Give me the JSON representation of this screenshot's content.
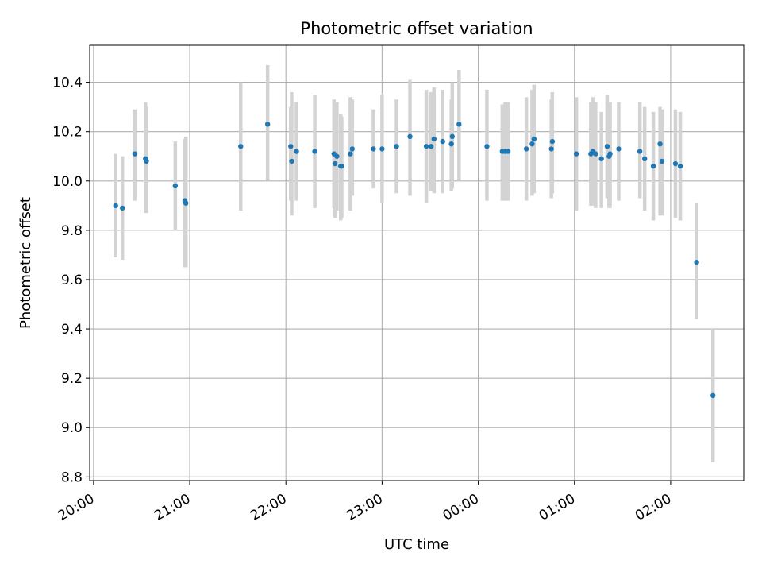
{
  "chart_data": {
    "type": "scatter",
    "title": "Photometric offset variation",
    "xlabel": "UTC time",
    "ylabel": "Photometric offset",
    "x_ticks": [
      "20:00",
      "21:00",
      "22:00",
      "23:00",
      "00:00",
      "01:00",
      "02:00"
    ],
    "y_ticks": [
      "8.8",
      "9.0",
      "9.2",
      "9.4",
      "9.6",
      "9.8",
      "10.0",
      "10.2",
      "10.4"
    ],
    "xlim_hours": [
      19.96,
      26.76
    ],
    "ylim": [
      8.785,
      10.55
    ],
    "grid": true,
    "point_color": "#1f77b4",
    "errorbar_color": "#d3d3d3",
    "series": [
      {
        "x_hours": [
          20.23,
          20.3,
          20.43,
          20.54,
          20.55,
          20.85,
          20.95,
          20.96,
          21.53,
          21.81,
          22.05,
          22.06,
          22.11,
          22.3,
          22.5,
          22.51,
          22.53,
          22.57,
          22.58,
          22.67,
          22.69,
          22.91,
          23.0,
          23.15,
          23.29,
          23.46,
          23.51,
          23.54,
          23.63,
          23.72,
          23.73,
          23.8,
          24.09,
          24.25,
          24.28,
          24.31,
          24.5,
          24.56,
          24.58,
          24.76,
          24.77,
          25.02,
          25.17,
          25.19,
          25.22,
          25.28,
          25.34,
          25.36,
          25.37,
          25.46,
          25.68,
          25.73,
          25.82,
          25.89,
          25.91,
          26.05,
          26.1,
          26.27,
          26.44
        ],
        "y": [
          9.9,
          9.89,
          10.11,
          10.09,
          10.08,
          9.98,
          9.92,
          9.91,
          10.14,
          10.23,
          10.14,
          10.08,
          10.12,
          10.12,
          10.11,
          10.07,
          10.1,
          10.06,
          10.06,
          10.11,
          10.13,
          10.13,
          10.13,
          10.14,
          10.18,
          10.14,
          10.14,
          10.17,
          10.16,
          10.15,
          10.18,
          10.23,
          10.14,
          10.12,
          10.12,
          10.12,
          10.13,
          10.15,
          10.17,
          10.13,
          10.16,
          10.11,
          10.11,
          10.12,
          10.11,
          10.09,
          10.14,
          10.1,
          10.11,
          10.13,
          10.12,
          10.09,
          10.06,
          10.15,
          10.08,
          10.07,
          10.06,
          9.67,
          9.13
        ],
        "err_low": [
          9.69,
          9.68,
          9.92,
          9.87,
          9.87,
          9.8,
          9.65,
          9.65,
          9.88,
          10.0,
          9.92,
          9.86,
          9.92,
          9.89,
          9.89,
          9.85,
          9.88,
          9.84,
          9.85,
          9.88,
          9.94,
          9.97,
          9.91,
          9.95,
          9.94,
          9.91,
          9.96,
          9.95,
          9.95,
          9.96,
          9.97,
          10.0,
          9.92,
          9.92,
          9.92,
          9.92,
          9.92,
          9.94,
          9.95,
          9.93,
          9.95,
          9.88,
          9.9,
          9.9,
          9.89,
          9.89,
          9.93,
          9.89,
          9.89,
          9.92,
          9.93,
          9.88,
          9.84,
          9.86,
          9.86,
          9.85,
          9.84,
          9.44,
          8.86
        ],
        "err_high": [
          10.11,
          10.1,
          10.29,
          10.32,
          10.3,
          10.16,
          10.17,
          10.18,
          10.4,
          10.47,
          10.3,
          10.36,
          10.32,
          10.35,
          10.33,
          10.29,
          10.32,
          10.27,
          10.26,
          10.34,
          10.33,
          10.29,
          10.35,
          10.33,
          10.41,
          10.37,
          10.36,
          10.38,
          10.37,
          10.33,
          10.4,
          10.45,
          10.37,
          10.31,
          10.32,
          10.32,
          10.34,
          10.37,
          10.39,
          10.33,
          10.36,
          10.34,
          10.32,
          10.34,
          10.32,
          10.28,
          10.35,
          10.31,
          10.32,
          10.32,
          10.32,
          10.3,
          10.28,
          10.3,
          10.29,
          10.29,
          10.28,
          9.91,
          9.4
        ]
      }
    ]
  }
}
